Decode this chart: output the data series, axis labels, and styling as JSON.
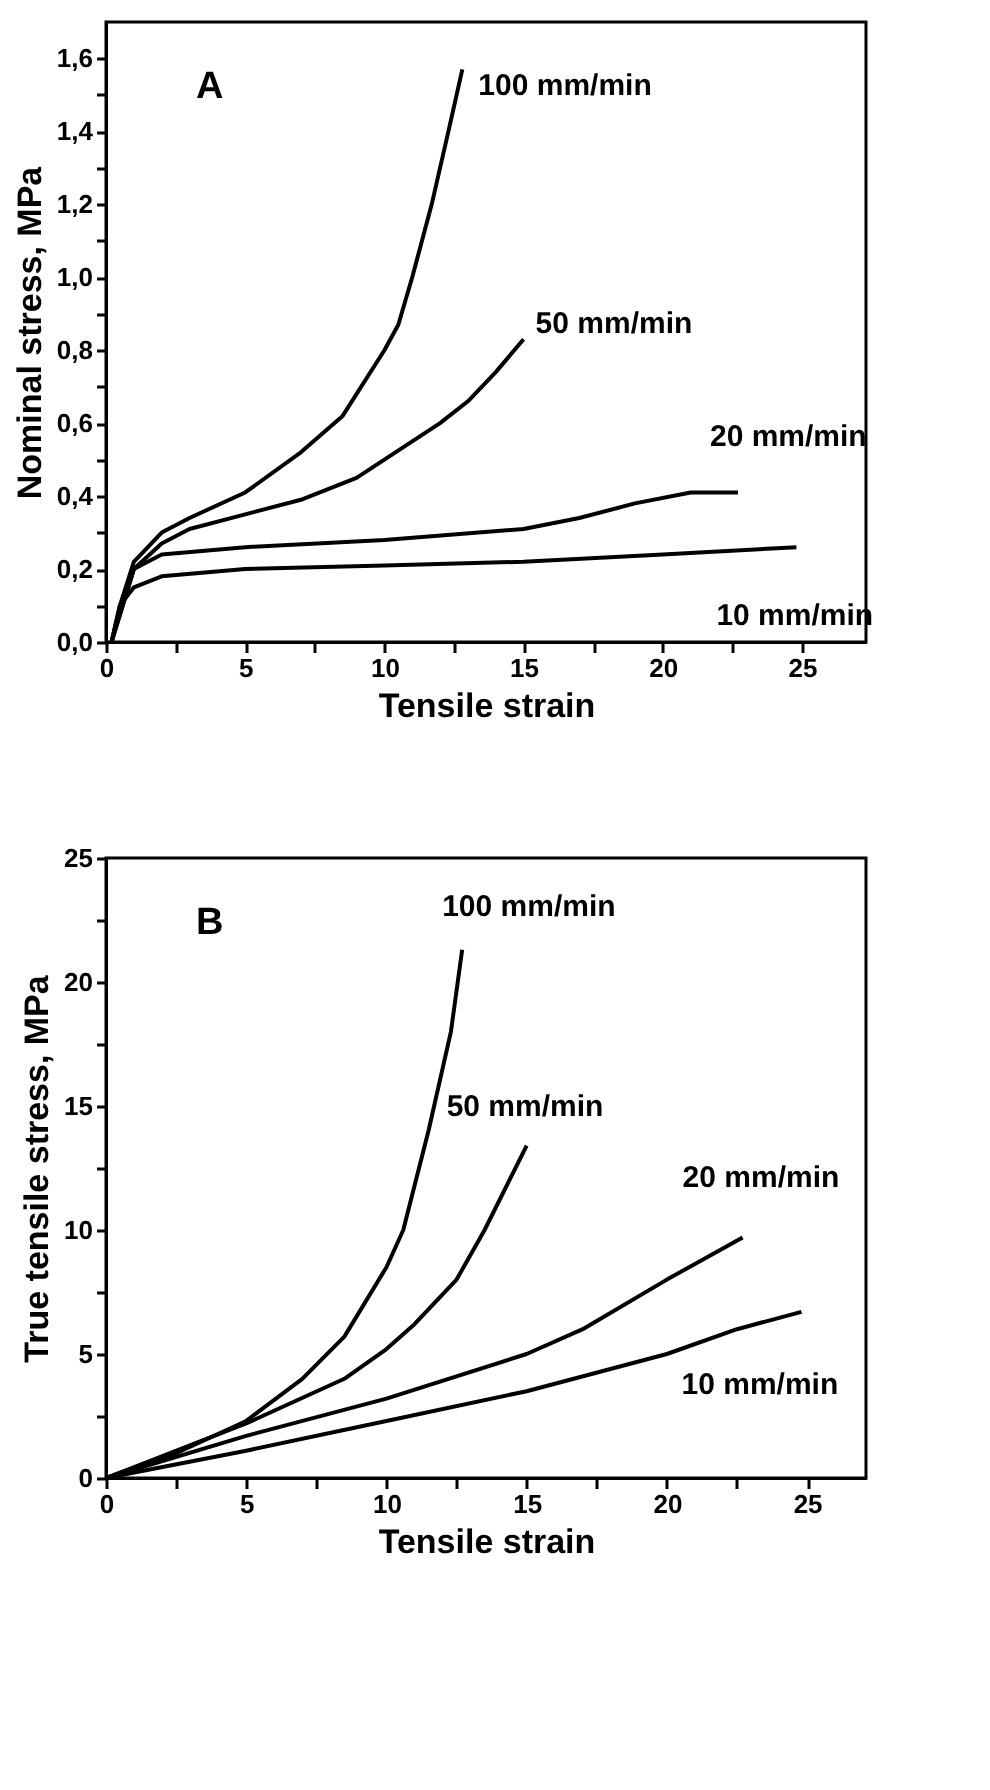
{
  "chart_data": [
    {
      "type": "line",
      "xlabel": "Tensile strain",
      "ylabel": "Nominal stress, MPa",
      "annotations": [
        "A"
      ],
      "xlim": [
        0,
        27.3
      ],
      "ylim": [
        0,
        1.7
      ],
      "xticks": [
        0,
        {
          "value": 2.5,
          "label": null
        },
        5,
        {
          "value": 7.5,
          "label": null
        },
        10,
        {
          "value": 12.5,
          "label": null
        },
        15,
        {
          "value": 17.5,
          "label": null
        },
        20,
        {
          "value": 22.5,
          "label": null
        },
        25
      ],
      "yticks": [
        {
          "value": 0,
          "label": "0,0"
        },
        {
          "value": 0.1,
          "label": null
        },
        {
          "value": 0.2,
          "label": "0,2"
        },
        {
          "value": 0.3,
          "label": null
        },
        {
          "value": 0.4,
          "label": "0,4"
        },
        {
          "value": 0.5,
          "label": null
        },
        {
          "value": 0.6,
          "label": "0,6"
        },
        {
          "value": 0.7,
          "label": null
        },
        {
          "value": 0.8,
          "label": "0,8"
        },
        {
          "value": 0.9,
          "label": null
        },
        {
          "value": 1.0,
          "label": "1,0"
        },
        {
          "value": 1.1,
          "label": null
        },
        {
          "value": 1.2,
          "label": "1,2"
        },
        {
          "value": 1.3,
          "label": null
        },
        {
          "value": 1.4,
          "label": "1,4"
        },
        {
          "value": 1.5,
          "label": null
        },
        {
          "value": 1.6,
          "label": "1,6"
        }
      ],
      "grid": false,
      "legend": false,
      "line_style": "solid",
      "marker": "none",
      "series": [
        {
          "name": "100 mm/min",
          "color": "#000000",
          "x": [
            0.2,
            0.5,
            1,
            2,
            3,
            5,
            7,
            8.5,
            10,
            10.5,
            11,
            11.7,
            12.3,
            12.8
          ],
          "values": [
            0,
            0.1,
            0.22,
            0.3,
            0.34,
            0.41,
            0.52,
            0.62,
            0.8,
            0.87,
            1.0,
            1.2,
            1.4,
            1.57
          ]
        },
        {
          "name": "50 mm/min",
          "color": "#000000",
          "x": [
            0.2,
            1,
            2,
            3,
            5,
            7,
            9,
            10,
            12,
            13,
            14,
            15
          ],
          "values": [
            0,
            0.2,
            0.27,
            0.31,
            0.35,
            0.39,
            0.45,
            0.5,
            0.6,
            0.66,
            0.74,
            0.83
          ]
        },
        {
          "name": "20 mm/min",
          "color": "#000000",
          "x": [
            0.2,
            1,
            2,
            5,
            10,
            15,
            17,
            19,
            21,
            22.7
          ],
          "values": [
            0,
            0.2,
            0.24,
            0.26,
            0.28,
            0.31,
            0.34,
            0.38,
            0.41,
            0.41
          ]
        },
        {
          "name": "10 mm/min",
          "color": "#000000",
          "x": [
            0.2,
            0.5,
            1,
            2,
            5,
            10,
            15,
            20,
            24.8
          ],
          "values": [
            0,
            0.1,
            0.15,
            0.18,
            0.2,
            0.21,
            0.22,
            0.24,
            0.26
          ]
        }
      ]
    },
    {
      "type": "line",
      "xlabel": "Tensile strain",
      "ylabel": "True tensile stress, MPa",
      "annotations": [
        "B"
      ],
      "xlim": [
        0,
        27.1
      ],
      "ylim": [
        0,
        25
      ],
      "xticks": [
        0,
        {
          "value": 2.5,
          "label": null
        },
        5,
        {
          "value": 7.5,
          "label": null
        },
        10,
        {
          "value": 12.5,
          "label": null
        },
        15,
        {
          "value": 17.5,
          "label": null
        },
        20,
        {
          "value": 22.5,
          "label": null
        },
        25
      ],
      "yticks": [
        0,
        {
          "value": 2.5,
          "label": null
        },
        5,
        {
          "value": 7.5,
          "label": null
        },
        10,
        {
          "value": 12.5,
          "label": null
        },
        15,
        {
          "value": 17.5,
          "label": null
        },
        20,
        {
          "value": 22.5,
          "label": null
        },
        25
      ],
      "grid": false,
      "legend": false,
      "line_style": "solid",
      "marker": "none",
      "series": [
        {
          "name": "100 mm/min",
          "color": "#000000",
          "x": [
            0,
            2.5,
            5,
            7,
            8.5,
            10,
            10.6,
            11.5,
            12.3,
            12.7
          ],
          "values": [
            0,
            1,
            2.3,
            4,
            5.7,
            8.5,
            10,
            14,
            18,
            21.3
          ]
        },
        {
          "name": "50 mm/min",
          "color": "#000000",
          "x": [
            0,
            5,
            8.5,
            10,
            11,
            12.5,
            13.5,
            15
          ],
          "values": [
            0,
            2.2,
            4,
            5.2,
            6.2,
            8,
            10,
            13.4
          ]
        },
        {
          "name": "20 mm/min",
          "color": "#000000",
          "x": [
            0,
            5,
            10,
            15,
            17,
            20,
            22.7
          ],
          "values": [
            0,
            1.7,
            3.2,
            5,
            6,
            8,
            9.7
          ]
        },
        {
          "name": "10 mm/min",
          "color": "#000000",
          "x": [
            0,
            5,
            10,
            15,
            20,
            22.5,
            24.8
          ],
          "values": [
            0,
            1.1,
            2.3,
            3.5,
            5,
            6,
            6.7
          ]
        }
      ]
    }
  ]
}
